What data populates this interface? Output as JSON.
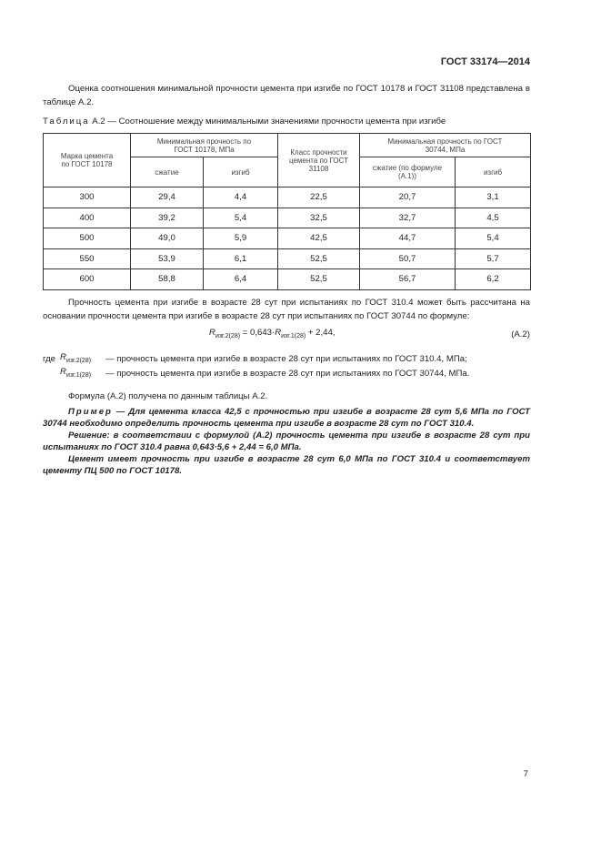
{
  "header": "ГОСТ 33174—2014",
  "intro": "Оценка соотношения минимальной прочности цемента при изгибе по ГОСТ 10178 и ГОСТ 31108 представлена в таблице А.2.",
  "table": {
    "caption_label": "Таблица",
    "caption": "А.2 — Соотношение между минимальными значениями прочности цемента при изгибе",
    "h_mark": "Марка цемента по ГОСТ 10178",
    "h_min1": "Минимальная прочность по ГОСТ 10178, МПа",
    "h_class": "Класс прочности цемента по ГОСТ 31108",
    "h_min2": "Минимальная прочность по ГОСТ 30744, МПа",
    "h_comp1": "сжатие",
    "h_bend1": "изгиб",
    "h_comp2": "сжатие (по формуле (А.1))",
    "h_bend2": "изгиб",
    "rows": [
      [
        "300",
        "29,4",
        "4,4",
        "22,5",
        "20,7",
        "3,1"
      ],
      [
        "400",
        "39,2",
        "5,4",
        "32,5",
        "32,7",
        "4,5"
      ],
      [
        "500",
        "49,0",
        "5,9",
        "42,5",
        "44,7",
        "5,4"
      ],
      [
        "550",
        "53,9",
        "6,1",
        "52,5",
        "50,7",
        "5,7"
      ],
      [
        "600",
        "58,8",
        "6,4",
        "52,5",
        "56,7",
        "6,2"
      ]
    ]
  },
  "para2": "Прочность цемента при изгибе в возрасте 28 сут при испытаниях по ГОСТ 310.4 может быть рассчитана на основании прочности цемента при изгибе в возрасте 28 сут при испытаниях по ГОСТ 30744 по формуле:",
  "formula": {
    "r": "R",
    "s2": "изг.2(28)",
    "mid": " = 0,643·",
    "s1": "изг.1(28)",
    "end": " + 2,44,",
    "num": "(А.2)"
  },
  "where": {
    "gde": "где",
    "d1": "— прочность цемента при изгибе в возрасте 28 сут при испытаниях по ГОСТ 310.4, МПа;",
    "d2": "— прочность цемента при изгибе в возрасте 28 сут при испытаниях по ГОСТ 30744, МПа."
  },
  "para3": "Формула (А.2) получена по данным таблицы А.2.",
  "example": {
    "label": "Пример",
    "text": " — Для цемента класса 42,5 с прочностью при изгибе в возрасте 28 сут 5,6 МПа по ГОСТ 30744 необходимо определить прочность цемента при изгибе в возрасте 28 сут по ГОСТ 310.4.",
    "solution": "Решение: в соответствии с формулой (А.2) прочность цемента при изгибе в возрасте 28 сут при испытаниях по ГОСТ 310.4 равна 0,643·5,6 + 2,44 = 6,0 МПа.",
    "conclusion": "Цемент имеет прочность при изгибе в возрасте 28 сут 6,0 МПа по ГОСТ 310.4 и соответствует цементу ПЦ 500 по ГОСТ 10178."
  },
  "page_number": "7"
}
